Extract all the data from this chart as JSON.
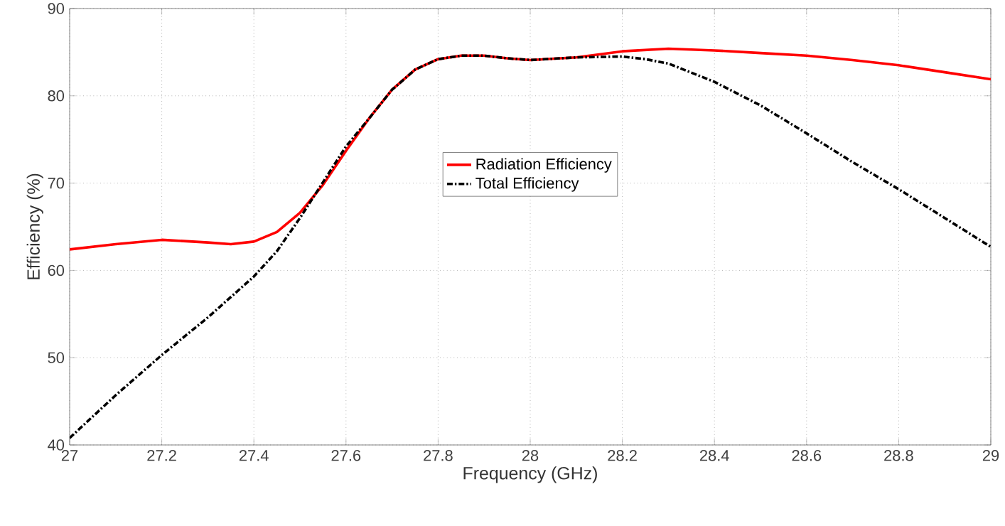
{
  "chart_data": {
    "type": "line",
    "xlabel": "Frequency (GHz)",
    "ylabel": "Efficiency (%)",
    "xlim": [
      27,
      29
    ],
    "ylim": [
      40,
      90
    ],
    "xticks": [
      27,
      27.2,
      27.4,
      27.6,
      27.8,
      28,
      28.2,
      28.4,
      28.6,
      28.8,
      29
    ],
    "yticks": [
      40,
      50,
      60,
      70,
      80,
      90
    ],
    "grid": true,
    "legend": "center",
    "marker": "none",
    "series": [
      {
        "name": "Radiation Efficiency",
        "color": "#ff0000",
        "line_style": "solid",
        "x": [
          27,
          27.1,
          27.2,
          27.3,
          27.35,
          27.4,
          27.45,
          27.5,
          27.55,
          27.6,
          27.65,
          27.7,
          27.75,
          27.8,
          27.85,
          27.9,
          27.95,
          28,
          28.1,
          28.2,
          28.3,
          28.4,
          28.5,
          28.6,
          28.7,
          28.8,
          28.9,
          29
        ],
        "values": [
          62.4,
          63.0,
          63.5,
          63.2,
          63.0,
          63.3,
          64.4,
          66.6,
          69.8,
          73.7,
          77.4,
          80.7,
          83.0,
          84.2,
          84.6,
          84.6,
          84.3,
          84.1,
          84.4,
          85.1,
          85.4,
          85.2,
          84.9,
          84.6,
          84.1,
          83.5,
          82.7,
          81.9
        ]
      },
      {
        "name": "Total Efficiency",
        "color": "#000000",
        "line_style": "dashdot",
        "x": [
          27,
          27.1,
          27.2,
          27.3,
          27.4,
          27.45,
          27.5,
          27.55,
          27.6,
          27.65,
          27.7,
          27.75,
          27.8,
          27.85,
          27.9,
          27.95,
          28,
          28.1,
          28.2,
          28.25,
          28.3,
          28.4,
          28.5,
          28.6,
          28.7,
          28.8,
          28.9,
          29
        ],
        "values": [
          40.8,
          45.7,
          50.3,
          54.6,
          59.3,
          62.2,
          66.0,
          70.1,
          74.2,
          77.4,
          80.7,
          83.0,
          84.2,
          84.6,
          84.6,
          84.3,
          84.1,
          84.4,
          84.5,
          84.2,
          83.7,
          81.6,
          78.9,
          75.7,
          72.4,
          69.3,
          66.0,
          62.7
        ]
      }
    ]
  }
}
